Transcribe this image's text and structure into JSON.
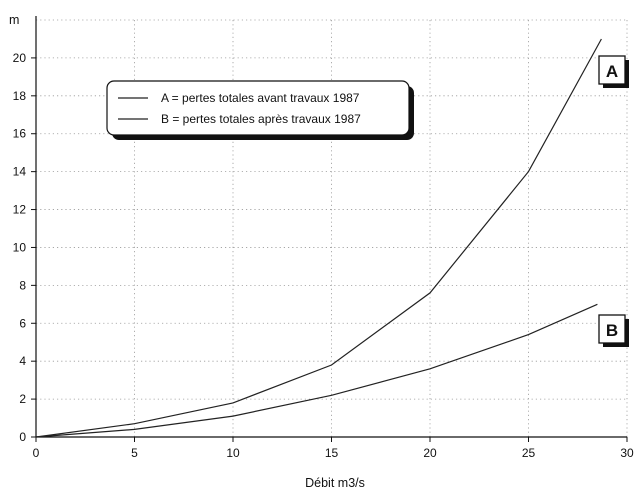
{
  "chart_data": {
    "type": "line",
    "title": "",
    "xlabel": "Débit m3/s",
    "ylabel": "m",
    "xlim": [
      0,
      30
    ],
    "ylim": [
      0,
      22
    ],
    "x_ticks": [
      0,
      5,
      10,
      15,
      20,
      25,
      30
    ],
    "y_ticks": [
      0,
      2,
      4,
      6,
      8,
      10,
      12,
      14,
      16,
      18,
      20
    ],
    "grid": true,
    "legend_position": "upper-left",
    "series": [
      {
        "name": "A = pertes totales avant travaux 1987",
        "tag": "A",
        "x": [
          0,
          5,
          10,
          15,
          20,
          25,
          28.7
        ],
        "y": [
          0,
          0.7,
          1.8,
          3.8,
          7.6,
          14.0,
          21.0
        ]
      },
      {
        "name": "B = pertes totales après travaux 1987",
        "tag": "B",
        "x": [
          0,
          5,
          10,
          15,
          20,
          25,
          28.5
        ],
        "y": [
          0,
          0.4,
          1.1,
          2.2,
          3.6,
          5.4,
          7.0
        ]
      }
    ]
  }
}
